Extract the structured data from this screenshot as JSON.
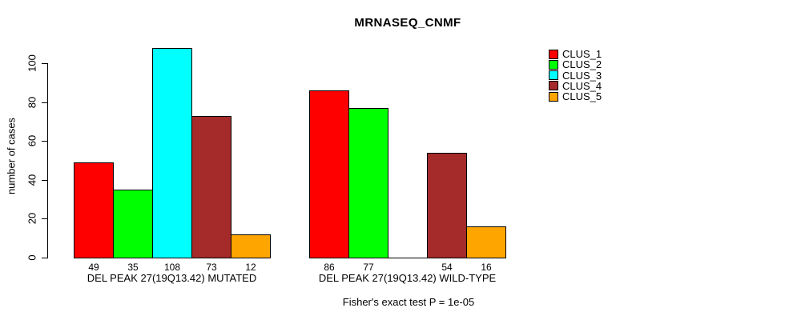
{
  "chart_data": {
    "type": "bar",
    "title": "MRNASEQ_CNMF",
    "ylabel": "number of cases",
    "xlabel": "",
    "yticks": [
      0,
      20,
      40,
      60,
      80,
      100
    ],
    "ylim": [
      0,
      110
    ],
    "grid": false,
    "legend_position": "top-right",
    "bar_value_labels_shown": true,
    "categories": [
      "DEL PEAK 27(19Q13.42) MUTATED",
      "DEL PEAK 27(19Q13.42) WILD-TYPE"
    ],
    "series": [
      {
        "name": "CLUS_1",
        "color": "#FF0000",
        "values": [
          49,
          86
        ]
      },
      {
        "name": "CLUS_2",
        "color": "#00FF00",
        "values": [
          35,
          77
        ]
      },
      {
        "name": "CLUS_3",
        "color": "#00FFFF",
        "values": [
          108,
          0
        ]
      },
      {
        "name": "CLUS_4",
        "color": "#A52A2A",
        "values": [
          73,
          54
        ]
      },
      {
        "name": "CLUS_5",
        "color": "#FFA500",
        "values": [
          12,
          16
        ]
      }
    ],
    "annotation": "Fisher's exact test P = 1e-05"
  }
}
